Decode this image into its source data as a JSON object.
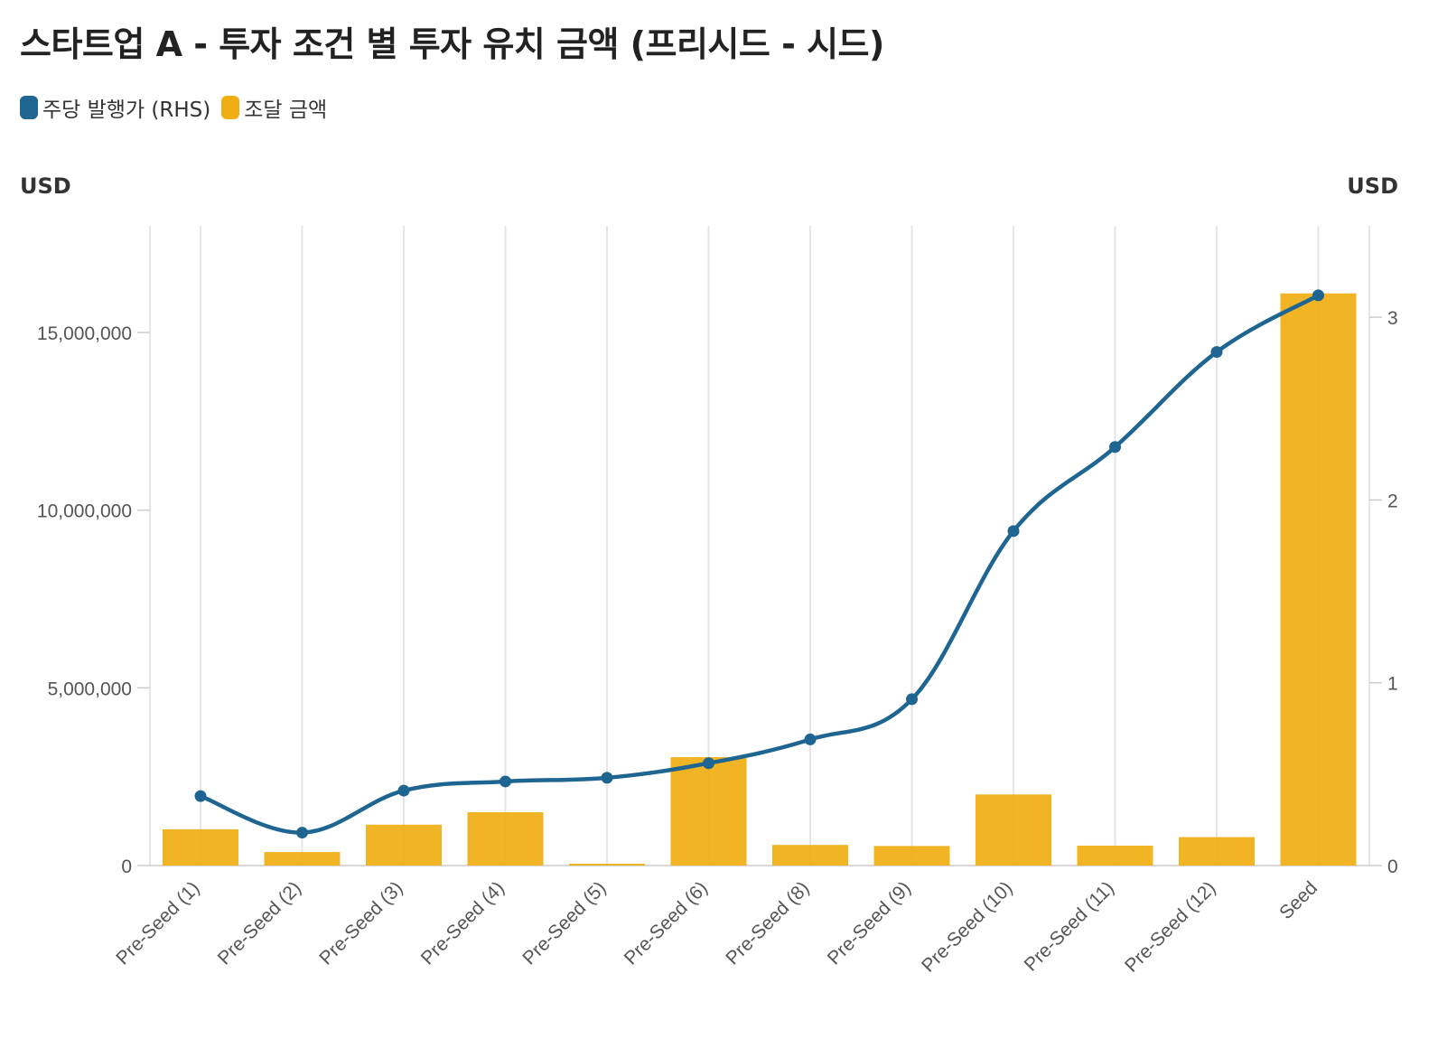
{
  "title": "스타트업 A - 투자 조건 별 투자 유치 금액 (프리시드 - 시드)",
  "legend": [
    {
      "label": "주당 발행가 (RHS)",
      "color": "#1f6591"
    },
    {
      "label": "조달 금액",
      "color": "#f0ae12"
    }
  ],
  "left_unit": "USD",
  "right_unit": "USD",
  "chart_data": {
    "type": "bar",
    "categories": [
      "Pre-Seed (1)",
      "Pre-Seed (2)",
      "Pre-Seed (3)",
      "Pre-Seed (4)",
      "Pre-Seed (5)",
      "Pre-Seed (6)",
      "Pre-Seed (8)",
      "Pre-Seed (9)",
      "Pre-Seed (10)",
      "Pre-Seed (11)",
      "Pre-Seed (12)",
      "Seed"
    ],
    "series": [
      {
        "name": "조달 금액",
        "kind": "bar",
        "axis": "left",
        "color": "#f0ae12",
        "values": [
          1020000,
          380000,
          1150000,
          1500000,
          50000,
          3050000,
          580000,
          550000,
          2000000,
          560000,
          800000,
          16100000
        ]
      },
      {
        "name": "주당 발행가 (RHS)",
        "kind": "line",
        "axis": "right",
        "color": "#1f6591",
        "values": [
          0.38,
          0.18,
          0.41,
          0.46,
          0.48,
          0.56,
          0.69,
          0.91,
          1.83,
          2.29,
          2.81,
          3.12
        ]
      }
    ],
    "y_left": {
      "min": 0,
      "max": 18000000,
      "ticks": [
        0,
        5000000,
        10000000,
        15000000
      ],
      "tick_labels": [
        "0",
        "5,000,000",
        "10,000,000",
        "15,000,000"
      ]
    },
    "y_right": {
      "min": 0,
      "max": 3.5,
      "ticks": [
        0,
        1,
        2,
        3
      ],
      "tick_labels": [
        "0",
        "1",
        "2",
        "3"
      ]
    },
    "grid": "vertical",
    "legend_position": "top-left"
  }
}
